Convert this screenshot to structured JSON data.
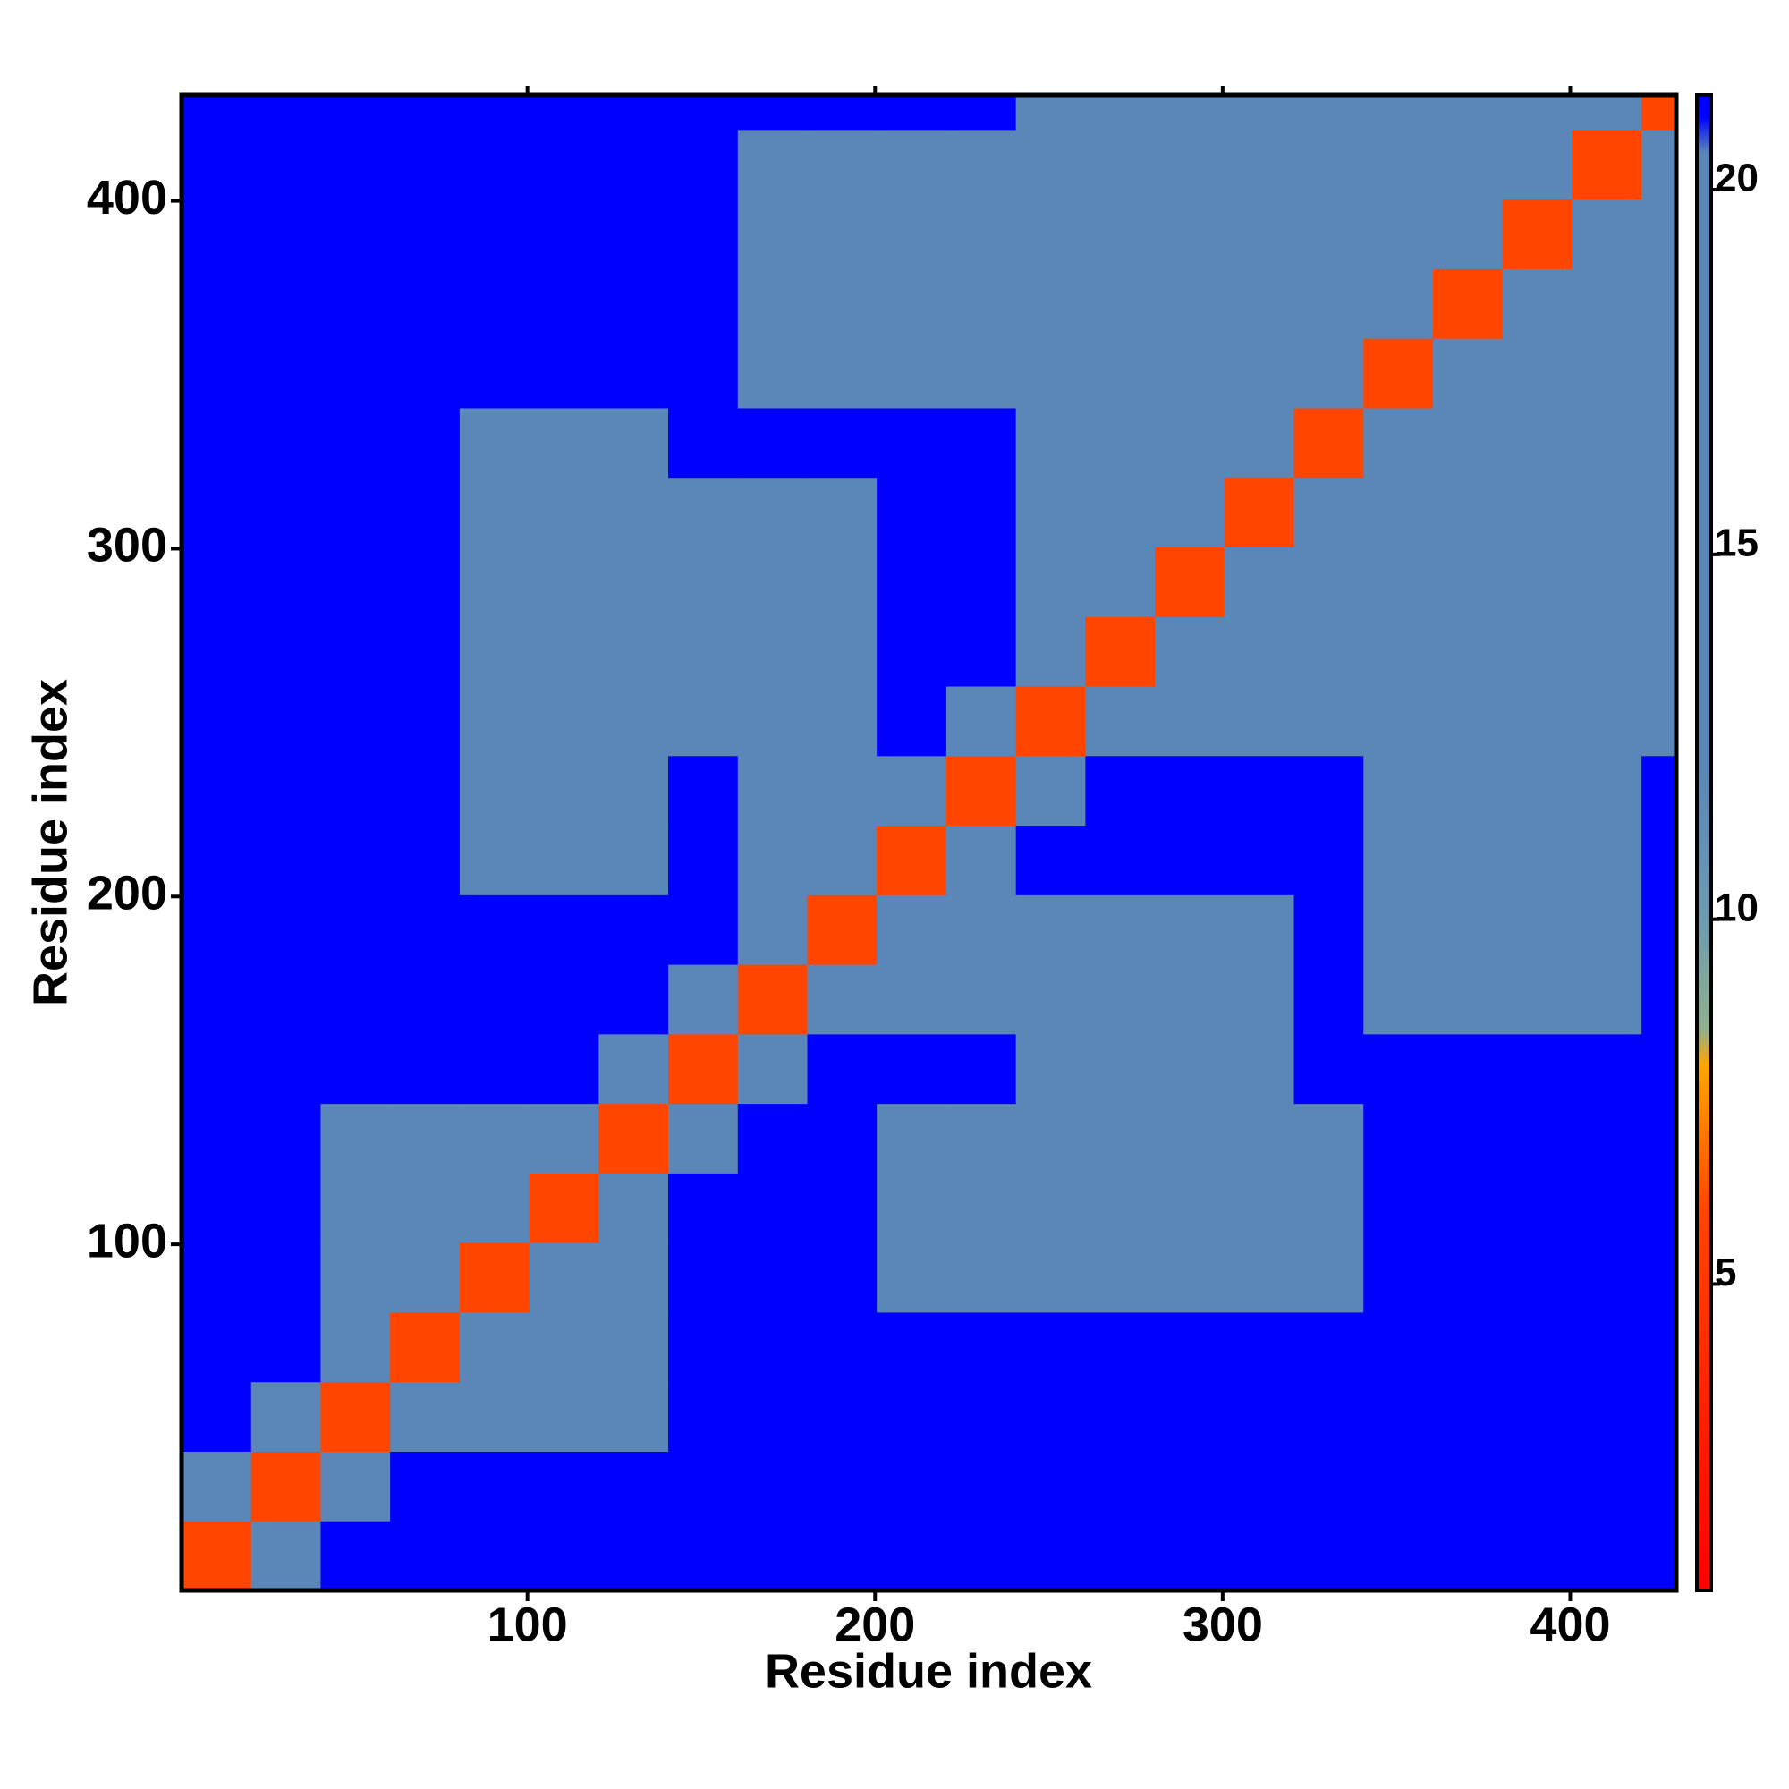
{
  "chart_data": {
    "type": "heatmap",
    "x_label": "Residue index",
    "y_label": "Residue index",
    "xlim": [
      0.5,
      430.5
    ],
    "ylim": [
      0.5,
      430.5
    ],
    "xticks": [
      100,
      200,
      300,
      400
    ],
    "yticks": [
      100,
      200,
      300,
      400
    ],
    "bins": [
      0.5,
      20.5,
      40.5,
      60.5,
      80.5,
      100.5,
      120.5,
      140.5,
      160.5,
      180.5,
      200.5,
      220.5,
      240.5,
      260.5,
      280.5,
      300.5,
      320.5,
      340.5,
      360.5,
      380.5,
      400.5,
      420.5,
      430.5
    ],
    "z": [
      [
        6,
        17,
        21,
        21,
        21,
        21,
        21,
        21,
        21,
        21,
        21,
        21,
        21,
        21,
        21,
        21,
        21,
        21,
        21,
        21,
        21,
        21
      ],
      [
        17,
        6,
        16,
        21,
        21,
        21,
        21,
        21,
        21,
        21,
        21,
        21,
        21,
        21,
        21,
        21,
        21,
        21,
        21,
        21,
        21,
        21
      ],
      [
        21,
        16,
        6,
        15,
        16,
        16,
        15,
        21,
        21,
        21,
        21,
        21,
        21,
        21,
        21,
        21,
        21,
        21,
        21,
        21,
        21,
        21
      ],
      [
        21,
        21,
        15,
        6,
        16,
        16,
        15,
        21,
        21,
        21,
        21,
        21,
        21,
        21,
        21,
        21,
        21,
        21,
        21,
        21,
        21,
        21
      ],
      [
        21,
        21,
        16,
        16,
        6,
        12,
        15,
        21,
        21,
        21,
        19,
        19,
        19,
        19,
        19,
        19,
        19,
        21,
        21,
        21,
        21,
        21
      ],
      [
        21,
        21,
        16,
        16,
        12,
        6,
        15,
        21,
        21,
        21,
        17,
        16,
        16,
        19,
        19,
        19,
        19,
        21,
        21,
        21,
        21,
        21
      ],
      [
        21,
        21,
        15,
        15,
        15,
        15,
        6,
        15,
        21,
        21,
        17,
        19,
        19,
        19,
        19,
        19,
        19,
        21,
        21,
        21,
        21,
        21
      ],
      [
        21,
        21,
        21,
        21,
        21,
        21,
        15,
        6,
        16,
        21,
        21,
        21,
        19,
        19,
        19,
        19,
        21,
        21,
        21,
        21,
        21,
        21
      ],
      [
        21,
        21,
        21,
        21,
        21,
        21,
        21,
        16,
        6,
        16,
        16,
        16,
        19,
        19,
        19,
        19,
        21,
        19,
        19,
        19,
        19,
        21
      ],
      [
        21,
        21,
        21,
        21,
        21,
        21,
        21,
        21,
        16,
        6,
        15,
        16,
        19,
        19,
        19,
        19,
        21,
        19,
        19,
        19,
        19,
        21
      ],
      [
        21,
        21,
        21,
        21,
        19,
        17,
        17,
        21,
        16,
        15,
        6,
        16,
        21,
        21,
        21,
        21,
        21,
        19,
        19,
        19,
        19,
        21
      ],
      [
        21,
        21,
        21,
        21,
        19,
        16,
        19,
        21,
        16,
        16,
        16,
        6,
        15,
        21,
        21,
        21,
        21,
        19,
        19,
        19,
        19,
        21
      ],
      [
        21,
        21,
        21,
        21,
        19,
        16,
        19,
        19,
        19,
        19,
        21,
        15,
        6,
        15,
        15,
        15,
        15,
        17,
        17,
        17,
        17,
        17
      ],
      [
        21,
        21,
        21,
        21,
        19,
        19,
        19,
        19,
        19,
        19,
        21,
        21,
        15,
        6,
        15,
        15,
        15,
        17,
        16,
        16,
        16,
        16
      ],
      [
        21,
        21,
        21,
        21,
        19,
        19,
        19,
        19,
        19,
        19,
        21,
        21,
        15,
        15,
        6,
        12,
        15,
        17,
        16,
        16,
        16,
        16
      ],
      [
        21,
        21,
        21,
        21,
        19,
        19,
        19,
        19,
        19,
        19,
        21,
        21,
        15,
        15,
        12,
        6,
        15,
        17,
        16,
        16,
        16,
        16
      ],
      [
        21,
        21,
        21,
        21,
        19,
        19,
        19,
        21,
        21,
        21,
        21,
        21,
        15,
        15,
        15,
        15,
        6,
        16,
        17,
        17,
        17,
        17
      ],
      [
        21,
        21,
        21,
        21,
        21,
        21,
        21,
        21,
        19,
        19,
        19,
        19,
        17,
        17,
        17,
        17,
        16,
        6,
        15,
        15,
        15,
        15
      ],
      [
        21,
        21,
        21,
        21,
        21,
        21,
        21,
        21,
        19,
        19,
        19,
        19,
        17,
        16,
        16,
        16,
        17,
        15,
        6,
        15,
        15,
        15
      ],
      [
        21,
        21,
        21,
        21,
        21,
        21,
        21,
        21,
        19,
        19,
        19,
        19,
        17,
        16,
        16,
        16,
        17,
        15,
        15,
        6,
        15,
        15
      ],
      [
        21,
        21,
        21,
        21,
        21,
        21,
        21,
        21,
        19,
        19,
        19,
        19,
        17,
        16,
        16,
        16,
        17,
        15,
        15,
        15,
        6,
        15
      ],
      [
        21,
        21,
        21,
        21,
        21,
        21,
        21,
        21,
        21,
        21,
        21,
        21,
        17,
        16,
        16,
        16,
        17,
        15,
        15,
        15,
        15,
        6
      ]
    ],
    "colorbar_lim": [
      0.8,
      21.3
    ],
    "colorbar_ticks": [
      5,
      10,
      15,
      20
    ],
    "colorscale": [
      [
        0.8,
        "#ff0000"
      ],
      [
        6,
        "#ff4500"
      ],
      [
        8,
        "#ffa500"
      ],
      [
        8.5,
        "#8fb08f"
      ],
      [
        10,
        "#6e9bb0"
      ],
      [
        12,
        "#5b87b8"
      ],
      [
        20.5,
        "#5b87b8"
      ],
      [
        21,
        "#0000ff"
      ]
    ]
  }
}
